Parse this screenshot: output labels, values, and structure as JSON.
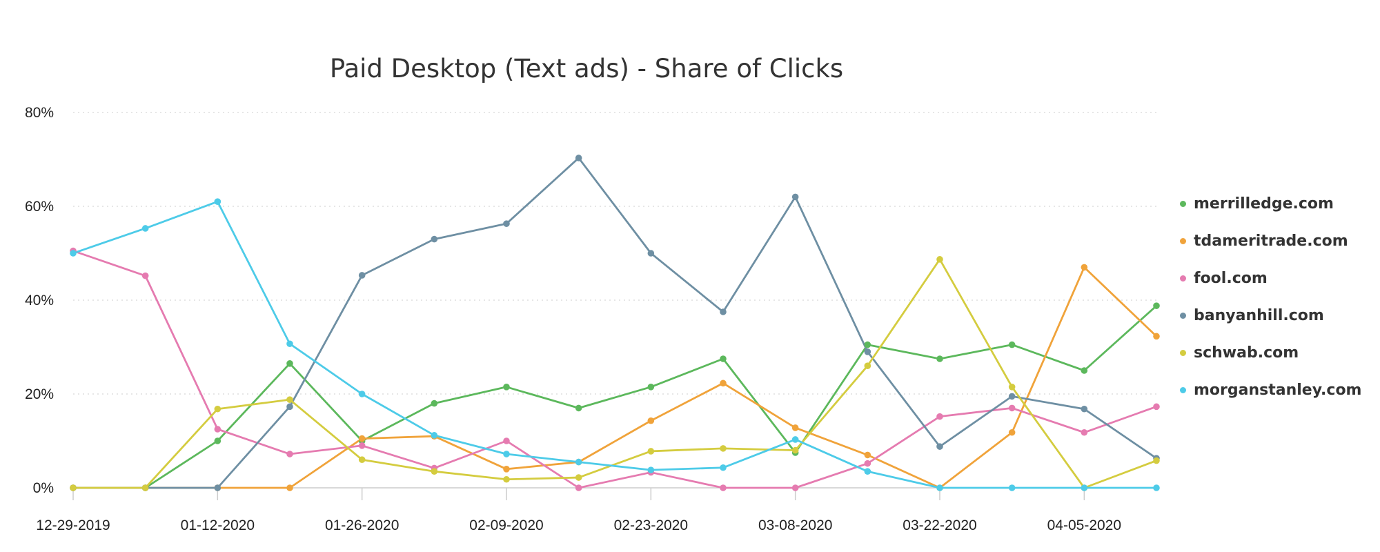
{
  "chart_data": {
    "type": "line",
    "title": "Paid Desktop (Text ads) - Share of Clicks",
    "xlabel": "",
    "ylabel": "",
    "ylim": [
      0,
      80
    ],
    "y_ticks": [
      "0%",
      "20%",
      "40%",
      "60%",
      "80%"
    ],
    "y_tick_values": [
      0,
      20,
      40,
      60,
      80
    ],
    "x_tick_labels": [
      "12-29-2019",
      "01-12-2020",
      "01-26-2020",
      "02-09-2020",
      "02-23-2020",
      "03-08-2020",
      "03-22-2020",
      "04-05-2020"
    ],
    "x_tick_indices": [
      0,
      2,
      4,
      6,
      8,
      10,
      12,
      14
    ],
    "point_count": 16,
    "grid": "horizontal dotted",
    "legend_position": "right",
    "series": [
      {
        "name": "merrilledge.com",
        "color": "#5cb85c",
        "values": [
          0,
          0,
          10,
          26.5,
          10,
          18,
          21.5,
          17,
          21.5,
          27.5,
          7.5,
          30.5,
          27.5,
          30.5,
          25,
          38.8
        ]
      },
      {
        "name": "tdameritrade.com",
        "color": "#f0a33a",
        "values": [
          0,
          0,
          0,
          0,
          10.5,
          11,
          4,
          5.5,
          14.3,
          22.3,
          12.8,
          7,
          0,
          11.8,
          47,
          32.3
        ]
      },
      {
        "name": "fool.com",
        "color": "#e57bb0",
        "values": [
          50.5,
          45.2,
          12.5,
          7.2,
          9,
          4.2,
          10,
          0,
          3.3,
          0,
          0,
          5.2,
          15.2,
          17,
          11.8,
          17.3
        ]
      },
      {
        "name": "banyanhill.com",
        "color": "#6e8fa3",
        "values": [
          0,
          0,
          0,
          17.3,
          45.3,
          53,
          56.3,
          70.3,
          50,
          37.5,
          62,
          29,
          8.8,
          19.5,
          16.8,
          6.3
        ]
      },
      {
        "name": "schwab.com",
        "color": "#d4cc3f",
        "values": [
          0,
          0,
          16.8,
          18.8,
          6,
          3.5,
          1.8,
          2.2,
          7.8,
          8.4,
          8,
          26,
          48.7,
          21.5,
          0,
          5.8
        ]
      },
      {
        "name": "morganstanley.com",
        "color": "#4dcbe8",
        "values": [
          50,
          55.3,
          61,
          30.7,
          20,
          11.2,
          7.2,
          5.5,
          3.8,
          4.3,
          10.3,
          3.5,
          0,
          0,
          0,
          0
        ]
      }
    ]
  }
}
